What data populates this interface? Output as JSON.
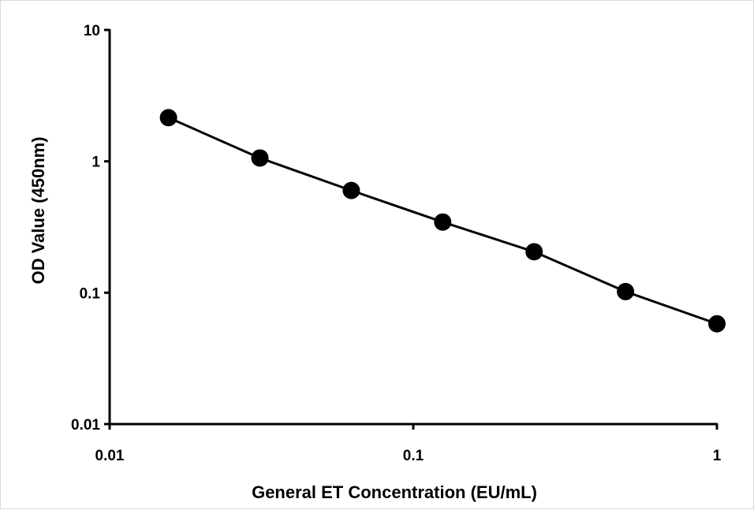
{
  "chart_data": {
    "type": "line",
    "xlabel": "General ET Concentration (EU/mL)",
    "ylabel": "OD Value (450nm)",
    "x_scale": "log",
    "y_scale": "log",
    "xlim": [
      0.01,
      1
    ],
    "ylim": [
      0.01,
      10
    ],
    "x_ticks": [
      "0.01",
      "0.1",
      "1"
    ],
    "y_ticks": [
      "0.01",
      "0.1",
      "1",
      "10"
    ],
    "grid": false,
    "legend": "none",
    "series": [
      {
        "color": "#000000",
        "marker": "filled-circle",
        "x": [
          0.015625,
          0.03125,
          0.0625,
          0.125,
          0.25,
          0.5,
          1
        ],
        "y": [
          2.15,
          1.06,
          0.6,
          0.345,
          0.205,
          0.102,
          0.058
        ]
      }
    ]
  }
}
